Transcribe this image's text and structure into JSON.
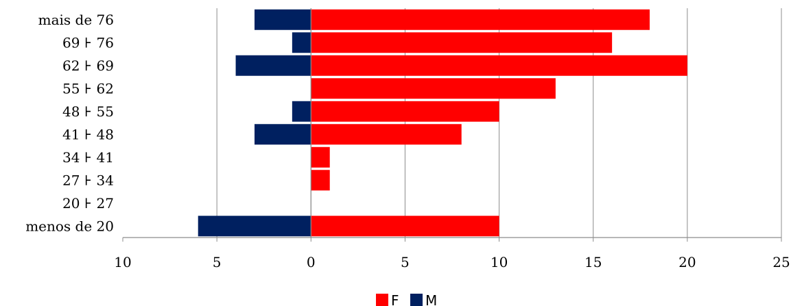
{
  "chart_data": {
    "type": "bar",
    "orientation": "horizontal",
    "layout": "population-pyramid",
    "categories": [
      "menos de 20",
      "20 ⊦ 27",
      "27 ⊦ 34",
      "34 ⊦ 41",
      "41 ⊦ 48",
      "48 ⊦ 55",
      "55 ⊦ 62",
      "62 ⊦ 69",
      "69 ⊦ 76",
      "mais de 76"
    ],
    "series": [
      {
        "name": "F",
        "color": "#ff0000",
        "values": [
          10,
          0,
          1,
          1,
          8,
          10,
          13,
          20,
          16,
          18
        ]
      },
      {
        "name": "M",
        "color": "#002060",
        "values": [
          6,
          0,
          0,
          0,
          3,
          1,
          0,
          4,
          1,
          3
        ]
      }
    ],
    "xlim": [
      -10,
      25
    ],
    "x_ticks": [
      -10,
      -5,
      0,
      5,
      10,
      15,
      20,
      25
    ],
    "x_tick_labels": [
      "10",
      "5",
      "0",
      "5",
      "10",
      "15",
      "20",
      "25"
    ],
    "grid": "vertical",
    "legend_position": "bottom",
    "title": "",
    "xlabel": "",
    "ylabel": ""
  }
}
